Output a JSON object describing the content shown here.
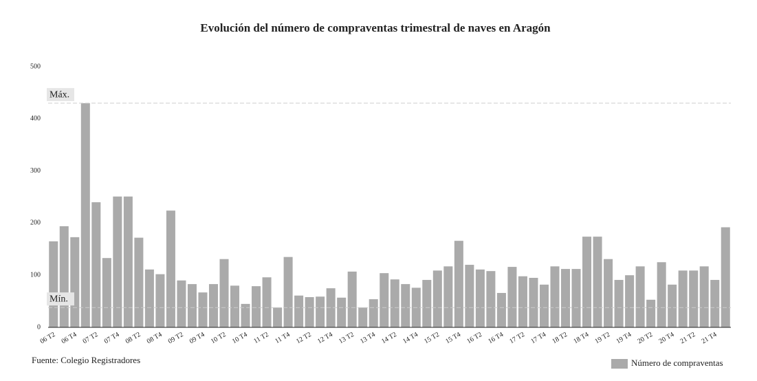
{
  "chart_data": {
    "type": "bar",
    "title": "Evolución del número de compraventas trimestral de naves en Aragón",
    "source": "Fuente: Colegio Registradores",
    "categories": [
      "06 T2",
      null,
      "06 T4",
      null,
      "07 T2",
      null,
      "07 T4",
      null,
      "08 T2",
      null,
      "08 T4",
      null,
      "09 T2",
      null,
      "09 T4",
      null,
      "10 T2",
      null,
      "10 T4",
      null,
      "11 T2",
      null,
      "11 T4",
      null,
      "12 T2",
      null,
      "12 T4",
      null,
      "13 T2",
      null,
      "13 T4",
      null,
      "14 T2",
      null,
      "14 T4",
      null,
      "15 T2",
      null,
      "15 T4",
      null,
      "16 T2",
      null,
      "16 T4",
      null,
      "17 T2",
      null,
      "17 T4",
      null,
      "18 T2",
      null,
      "18 T4",
      null,
      "19 T2",
      null,
      "19 T4",
      null,
      "20 T2",
      null,
      "20 T4",
      null,
      "21 T2",
      null,
      "21 T4",
      null
    ],
    "series": [
      {
        "name": "Número de compraventas",
        "color": "#aaaaaa",
        "values": [
          165,
          194,
          173,
          430,
          240,
          133,
          251,
          251,
          172,
          111,
          102,
          224,
          90,
          83,
          67,
          83,
          131,
          80,
          45,
          79,
          96,
          38,
          135,
          61,
          58,
          59,
          75,
          57,
          107,
          38,
          54,
          104,
          92,
          83,
          76,
          91,
          109,
          117,
          166,
          120,
          111,
          108,
          66,
          116,
          98,
          95,
          82,
          117,
          112,
          112,
          174,
          174,
          131,
          91,
          100,
          117,
          53,
          125,
          82,
          109,
          109,
          117,
          91,
          192
        ]
      }
    ],
    "ylim": [
      0,
      500
    ],
    "yticks": [
      0,
      100,
      200,
      300,
      400,
      500
    ],
    "annotations": [
      {
        "label": "Máx.",
        "value": 430
      },
      {
        "label": "Mín.",
        "value": 38
      }
    ],
    "legend": "bottom-right"
  }
}
